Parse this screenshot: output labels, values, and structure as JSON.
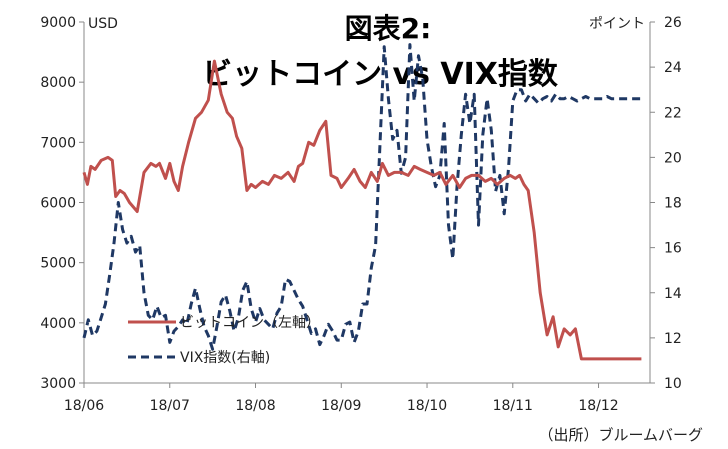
{
  "chart_data": {
    "type": "line",
    "title_line1": "図表2:",
    "title_line2": "ビットコイン vs VIX指数",
    "left_unit": "USD",
    "right_unit": "ポイント",
    "source": "（出所）ブルームバーグ",
    "left_axis": {
      "min": 3000,
      "max": 9000,
      "ticks": [
        "3000",
        "4000",
        "5000",
        "6000",
        "7000",
        "8000",
        "9000"
      ]
    },
    "right_axis": {
      "min": 10,
      "max": 26,
      "ticks": [
        "10",
        "12",
        "14",
        "16",
        "18",
        "20",
        "22",
        "24",
        "26"
      ]
    },
    "x_ticks": [
      "18/06",
      "18/07",
      "18/08",
      "18/09",
      "18/10",
      "18/11",
      "18/12"
    ],
    "x_range": [
      0,
      6.6
    ],
    "grid": false,
    "legend_position": "lower-left",
    "series": [
      {
        "name": "ビットコイン（左軸）",
        "axis": "left",
        "color": "#c0504d",
        "style": "solid",
        "x": [
          0,
          0.04,
          0.08,
          0.13,
          0.2,
          0.28,
          0.33,
          0.37,
          0.42,
          0.47,
          0.53,
          0.62,
          0.7,
          0.78,
          0.84,
          0.88,
          0.95,
          1.0,
          1.05,
          1.1,
          1.15,
          1.22,
          1.3,
          1.37,
          1.45,
          1.52,
          1.6,
          1.67,
          1.73,
          1.78,
          1.84,
          1.9,
          1.95,
          2.0,
          2.08,
          2.15,
          2.22,
          2.3,
          2.38,
          2.45,
          2.5,
          2.55,
          2.62,
          2.68,
          2.75,
          2.82,
          2.88,
          2.95,
          3.0,
          3.08,
          3.15,
          3.22,
          3.28,
          3.35,
          3.42,
          3.48,
          3.55,
          3.62,
          3.7,
          3.78,
          3.85,
          3.92,
          4.0,
          4.08,
          4.15,
          4.22,
          4.3,
          4.38,
          4.45,
          4.52,
          4.6,
          4.68,
          4.75,
          4.82,
          4.9,
          4.97,
          5.03,
          5.08,
          5.13,
          5.18,
          5.25,
          5.32,
          5.4,
          5.47,
          5.53,
          5.6,
          5.67,
          5.73,
          5.8,
          5.87,
          5.93,
          6.0,
          6.07,
          6.13,
          6.2,
          6.3,
          6.4,
          6.5
        ],
        "values": [
          6500,
          6300,
          6600,
          6550,
          6700,
          6750,
          6700,
          6100,
          6200,
          6150,
          6000,
          5850,
          6500,
          6650,
          6600,
          6650,
          6400,
          6650,
          6350,
          6200,
          6600,
          7000,
          7400,
          7500,
          7700,
          8350,
          7800,
          7500,
          7400,
          7100,
          6900,
          6200,
          6300,
          6250,
          6350,
          6300,
          6450,
          6400,
          6500,
          6350,
          6600,
          6650,
          7000,
          6950,
          7200,
          7350,
          6450,
          6400,
          6250,
          6400,
          6550,
          6350,
          6250,
          6500,
          6350,
          6650,
          6450,
          6500,
          6500,
          6450,
          6600,
          6550,
          6500,
          6450,
          6500,
          6300,
          6450,
          6250,
          6400,
          6450,
          6450,
          6350,
          6400,
          6300,
          6400,
          6450,
          6400,
          6450,
          6300,
          6200,
          5500,
          4500,
          3800,
          4100,
          3600,
          3900,
          3800,
          3900,
          3400,
          3400,
          3400,
          3400,
          3400,
          3400,
          3400,
          3400,
          3400,
          3400
        ],
        "annotated_points": [
          {
            "x": 4.85,
            "y": 6500
          },
          {
            "x": 5.2,
            "y": 6400
          }
        ]
      },
      {
        "name": "VIX指数(右軸)",
        "axis": "right",
        "color": "#1f3864",
        "style": "dashed",
        "x": [
          0,
          0.05,
          0.1,
          0.15,
          0.2,
          0.25,
          0.3,
          0.35,
          0.4,
          0.45,
          0.5,
          0.55,
          0.6,
          0.65,
          0.7,
          0.75,
          0.8,
          0.85,
          0.9,
          0.95,
          1.0,
          1.05,
          1.1,
          1.15,
          1.2,
          1.25,
          1.3,
          1.35,
          1.4,
          1.45,
          1.5,
          1.55,
          1.6,
          1.65,
          1.7,
          1.75,
          1.8,
          1.85,
          1.9,
          1.95,
          2.0,
          2.05,
          2.1,
          2.15,
          2.2,
          2.25,
          2.3,
          2.35,
          2.4,
          2.45,
          2.5,
          2.55,
          2.6,
          2.65,
          2.7,
          2.75,
          2.8,
          2.85,
          2.9,
          2.95,
          3.0,
          3.05,
          3.1,
          3.15,
          3.2,
          3.25,
          3.3,
          3.35,
          3.4,
          3.45,
          3.5,
          3.55,
          3.6,
          3.65,
          3.7,
          3.75,
          3.8,
          3.85,
          3.9,
          3.95,
          4.0,
          4.05,
          4.1,
          4.15,
          4.2,
          4.25,
          4.3,
          4.35,
          4.4,
          4.45,
          4.5,
          4.55,
          4.6,
          4.65,
          4.7,
          4.75,
          4.8,
          4.85,
          4.9,
          4.95,
          5.0,
          5.05,
          5.1,
          5.15,
          5.2,
          5.25,
          5.3,
          5.35,
          5.4,
          5.45,
          5.5,
          5.55,
          5.6,
          5.65,
          5.7,
          5.75,
          5.8,
          5.85,
          5.9,
          5.95,
          6.0,
          6.05,
          6.1,
          6.15,
          6.2,
          6.25,
          6.3,
          6.35,
          6.4,
          6.45,
          6.5
        ],
        "values": [
          12,
          12.8,
          12.1,
          12.3,
          12.9,
          13.5,
          14.8,
          16.2,
          18,
          16.8,
          16.2,
          16.5,
          15.8,
          16.1,
          14,
          13,
          12.8,
          13.4,
          12.9,
          13,
          11.8,
          12.3,
          12.5,
          12.8,
          12.6,
          13.5,
          14.2,
          13.3,
          12.5,
          12.1,
          11.5,
          12.5,
          13.6,
          13.9,
          13.2,
          12.3,
          12.9,
          14.1,
          14.5,
          13.3,
          12.7,
          13.3,
          12.8,
          12.6,
          12.4,
          13.1,
          13.4,
          14.6,
          14.5,
          14.1,
          13.7,
          13.4,
          12.8,
          12.2,
          12.4,
          11.7,
          12.1,
          12.6,
          12.3,
          11.9,
          11.9,
          12.6,
          12.7,
          11.8,
          12.3,
          13.5,
          13.5,
          15.1,
          16.1,
          20.5,
          24.9,
          22.6,
          20.8,
          21.2,
          19.3,
          20,
          25,
          22.5,
          24.5,
          23.5,
          20.8,
          19.6,
          18.7,
          19.2,
          21.5,
          17,
          15.5,
          18.7,
          21,
          22.8,
          21.5,
          22.8,
          17,
          21,
          22.6,
          21.2,
          18.5,
          19.2,
          17.5,
          19.5,
          22.5,
          23,
          23,
          22.5,
          22.8,
          22.6,
          22.4,
          22.6,
          22.7,
          22.5,
          22.8,
          22.6,
          22.6,
          22.7,
          22.6,
          22.5,
          22.6,
          22.7,
          22.6,
          22.6,
          22.6,
          22.6,
          22.7,
          22.6,
          22.6,
          22.6,
          22.6,
          22.6,
          22.6,
          22.6,
          22.6
        ]
      }
    ],
    "colors": {
      "bitcoin": "#c0504d",
      "vix": "#1f3864",
      "axis": "#888888"
    }
  }
}
